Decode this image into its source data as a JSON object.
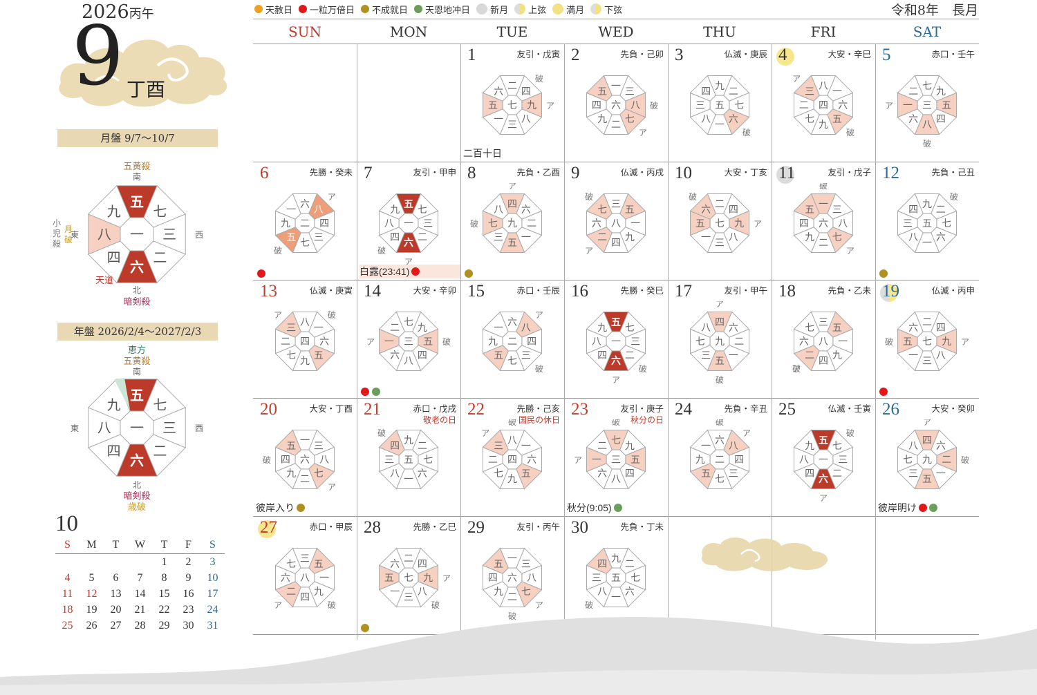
{
  "header": {
    "year": "2026",
    "year_kanshi": "丙午",
    "month": "9",
    "month_kanshi": "丁酉",
    "era": "令和8年　長月"
  },
  "legend": [
    {
      "label": "天赦日",
      "color": "#f0a020",
      "type": "dot"
    },
    {
      "label": "一粒万倍日",
      "color": "#e01818",
      "type": "dot"
    },
    {
      "label": "不成就日",
      "color": "#b09020",
      "type": "dot"
    },
    {
      "label": "天恩地冲日",
      "color": "#6a9e5a",
      "type": "dot"
    },
    {
      "label": "新月",
      "color": "#d8d8d8",
      "type": "moon-new"
    },
    {
      "label": "上弦",
      "color": "#f3e080",
      "type": "moon-half"
    },
    {
      "label": "満月",
      "color": "#f3e080",
      "type": "moon-full"
    },
    {
      "label": "下弦",
      "color": "#f3e080",
      "type": "moon-half"
    }
  ],
  "weekdays": [
    "SUN",
    "MON",
    "TUE",
    "WED",
    "THU",
    "FRI",
    "SAT"
  ],
  "colors": {
    "red": "#c0392b",
    "blue": "#2a6a9a",
    "salmon": "#f6d0c0",
    "accent": "#d8482f",
    "orange": "#ee9e78",
    "dark": "#bb3a2a",
    "ichiryu": "#e01818",
    "fujo": "#b09020",
    "tenon": "#6a9e5a",
    "banner": "#e8d9b4"
  },
  "month_board": {
    "title": "月盤 9/7〜10/7",
    "label_top": "五黄殺",
    "south": "南",
    "north": "北",
    "east": "東",
    "west": "西",
    "label_bottom": "暗剣殺",
    "label_tendo": "天道",
    "label_left_a": "小児殺",
    "label_left_b": "月破",
    "center": "一",
    "cells": [
      "五",
      "七",
      "三",
      "二",
      "六",
      "四",
      "八",
      "九"
    ]
  },
  "year_board": {
    "title": "年盤 2026/2/4〜2027/2/3",
    "label_ehou": "恵方",
    "label_top": "五黄殺",
    "south": "南",
    "north": "北",
    "east": "東",
    "west": "西",
    "label_bottom": "暗剣殺",
    "label_saiha": "歳破",
    "center": "一",
    "cells": [
      "五",
      "七",
      "三",
      "二",
      "六",
      "四",
      "八",
      "九"
    ]
  },
  "days": [
    {
      "d": "1",
      "rk": "友引・戊寅",
      "center": "七",
      "ring": [
        "二",
        "四",
        "九",
        "八",
        "三",
        "一",
        "五",
        "六"
      ],
      "hl": [
        {
          "i": 2,
          "s": "p"
        },
        {
          "i": 6,
          "s": "p"
        }
      ],
      "a": 2,
      "ha": 1,
      "note": "二百十日"
    },
    {
      "d": "2",
      "rk": "先負・己卯",
      "center": "六",
      "ring": [
        "一",
        "三",
        "八",
        "七",
        "二",
        "九",
        "四",
        "五"
      ],
      "hl": [
        {
          "i": 7,
          "s": "p"
        },
        {
          "i": 3,
          "s": "p"
        },
        {
          "i": 2,
          "s": "p"
        }
      ],
      "a": 3,
      "ha": 2
    },
    {
      "d": "3",
      "rk": "仏滅・庚辰",
      "center": "五",
      "ring": [
        "九",
        "二",
        "七",
        "六",
        "一",
        "八",
        "三",
        "四"
      ],
      "hl": [
        {
          "i": 3,
          "s": "p"
        }
      ],
      "a": -1,
      "ha": 3
    },
    {
      "d": "4",
      "rk": "大安・辛巳",
      "center": "四",
      "ring": [
        "八",
        "一",
        "六",
        "五",
        "九",
        "七",
        "二",
        "三"
      ],
      "hl": [
        {
          "i": 7,
          "s": "p"
        },
        {
          "i": 3,
          "s": "p"
        }
      ],
      "a": 7,
      "ha": 3,
      "moon": "full"
    },
    {
      "d": "5",
      "rk": "赤口・壬午",
      "center": "三",
      "ring": [
        "七",
        "九",
        "五",
        "四",
        "八",
        "六",
        "一",
        "二"
      ],
      "hl": [
        {
          "i": 6,
          "s": "p"
        },
        {
          "i": 2,
          "s": "p"
        },
        {
          "i": 4,
          "s": "p"
        }
      ],
      "a": 6,
      "ha": 4
    },
    {
      "d": "6",
      "rk": "先勝・癸未",
      "center": "二",
      "ring": [
        "六",
        "八",
        "四",
        "三",
        "七",
        "五",
        "九",
        "一"
      ],
      "hl": [
        {
          "i": 1,
          "s": "o"
        },
        {
          "i": 5,
          "s": "o"
        }
      ],
      "a": 1,
      "ha": 5,
      "dots": [
        "ichiryu"
      ]
    },
    {
      "d": "7",
      "rk": "友引・甲申",
      "center": "一",
      "ring": [
        "五",
        "七",
        "三",
        "二",
        "六",
        "四",
        "八",
        "九"
      ],
      "hl": [
        {
          "i": 0,
          "s": "r"
        },
        {
          "i": 4,
          "s": "r"
        }
      ],
      "a": 4,
      "ha": 5,
      "note": "白露(23:41)",
      "notedots": [
        "ichiryu"
      ],
      "notebg": true
    },
    {
      "d": "8",
      "rk": "先負・乙酉",
      "center": "九",
      "ring": [
        "四",
        "六",
        "二",
        "一",
        "五",
        "三",
        "七",
        "八"
      ],
      "hl": [
        {
          "i": 0,
          "s": "p"
        },
        {
          "i": 4,
          "s": "p"
        },
        {
          "i": 6,
          "s": "p"
        }
      ],
      "a": 0,
      "ha": 6,
      "dots": [
        "fujo"
      ]
    },
    {
      "d": "9",
      "rk": "仏滅・丙戌",
      "center": "八",
      "ring": [
        "三",
        "五",
        "一",
        "九",
        "四",
        "二",
        "六",
        "七"
      ],
      "hl": [
        {
          "i": 1,
          "s": "p"
        },
        {
          "i": 7,
          "s": "p"
        },
        {
          "i": 5,
          "s": "p"
        }
      ],
      "a": 5,
      "ha": 7
    },
    {
      "d": "10",
      "rk": "大安・丁亥",
      "center": "七",
      "ring": [
        "二",
        "四",
        "九",
        "八",
        "三",
        "一",
        "五",
        "六"
      ],
      "hl": [
        {
          "i": 2,
          "s": "p"
        },
        {
          "i": 6,
          "s": "p"
        },
        {
          "i": 7,
          "s": "p"
        }
      ],
      "a": 2,
      "ha": 7
    },
    {
      "d": "11",
      "rk": "友引・戊子",
      "center": "六",
      "ring": [
        "一",
        "三",
        "八",
        "七",
        "二",
        "九",
        "四",
        "五"
      ],
      "hl": [
        {
          "i": 0,
          "s": "p"
        },
        {
          "i": 7,
          "s": "p"
        },
        {
          "i": 3,
          "s": "p"
        }
      ],
      "a": 3,
      "ha": 0,
      "moon": "new"
    },
    {
      "d": "12",
      "rk": "先負・己丑",
      "center": "五",
      "ring": [
        "九",
        "二",
        "七",
        "六",
        "一",
        "八",
        "三",
        "四"
      ],
      "hl": [],
      "a": -1,
      "ha": 1,
      "dots": [
        "fujo"
      ]
    },
    {
      "d": "13",
      "rk": "仏滅・庚寅",
      "center": "四",
      "ring": [
        "八",
        "一",
        "六",
        "五",
        "九",
        "七",
        "二",
        "三"
      ],
      "hl": [
        {
          "i": 7,
          "s": "p"
        },
        {
          "i": 3,
          "s": "p"
        }
      ],
      "a": 7,
      "ha": 1
    },
    {
      "d": "14",
      "rk": "大安・辛卯",
      "center": "三",
      "ring": [
        "七",
        "九",
        "五",
        "四",
        "八",
        "六",
        "一",
        "二"
      ],
      "hl": [
        {
          "i": 6,
          "s": "p"
        },
        {
          "i": 2,
          "s": "p"
        }
      ],
      "a": 6,
      "ha": 2,
      "dots": [
        "ichiryu",
        "tenon"
      ]
    },
    {
      "d": "15",
      "rk": "赤口・壬辰",
      "center": "二",
      "ring": [
        "六",
        "八",
        "四",
        "三",
        "七",
        "五",
        "九",
        "一"
      ],
      "hl": [
        {
          "i": 1,
          "s": "p"
        },
        {
          "i": 5,
          "s": "p"
        }
      ],
      "a": 1,
      "ha": 3
    },
    {
      "d": "16",
      "rk": "先勝・癸巳",
      "center": "一",
      "ring": [
        "五",
        "七",
        "三",
        "二",
        "六",
        "四",
        "八",
        "九"
      ],
      "hl": [
        {
          "i": 0,
          "s": "r"
        },
        {
          "i": 4,
          "s": "r"
        }
      ],
      "a": 4,
      "ha": 3
    },
    {
      "d": "17",
      "rk": "友引・甲午",
      "center": "九",
      "ring": [
        "四",
        "六",
        "二",
        "一",
        "五",
        "三",
        "七",
        "八"
      ],
      "hl": [
        {
          "i": 0,
          "s": "p"
        },
        {
          "i": 4,
          "s": "p"
        }
      ],
      "a": 0,
      "ha": 4
    },
    {
      "d": "18",
      "rk": "先負・乙未",
      "center": "八",
      "ring": [
        "三",
        "五",
        "一",
        "九",
        "四",
        "二",
        "六",
        "七"
      ],
      "hl": [
        {
          "i": 1,
          "s": "p"
        },
        {
          "i": 5,
          "s": "p"
        }
      ],
      "a": 5,
      "ha": 5
    },
    {
      "d": "19",
      "rk": "仏滅・丙申",
      "center": "七",
      "ring": [
        "二",
        "四",
        "九",
        "八",
        "三",
        "一",
        "五",
        "六"
      ],
      "hl": [
        {
          "i": 2,
          "s": "p"
        },
        {
          "i": 6,
          "s": "p"
        }
      ],
      "a": 2,
      "ha": 6,
      "moon": "half",
      "dots": [
        "ichiryu"
      ]
    },
    {
      "d": "20",
      "rk": "大安・丁酉",
      "center": "六",
      "ring": [
        "一",
        "三",
        "八",
        "七",
        "二",
        "九",
        "四",
        "五"
      ],
      "hl": [
        {
          "i": 7,
          "s": "p"
        },
        {
          "i": 3,
          "s": "p"
        }
      ],
      "a": 3,
      "ha": 6,
      "note": "彼岸入り",
      "notedots": [
        "fujo"
      ]
    },
    {
      "d": "21",
      "rk": "赤口・戊戌",
      "hol": "敬老の日",
      "center": "五",
      "ring": [
        "九",
        "二",
        "七",
        "六",
        "一",
        "八",
        "三",
        "四"
      ],
      "hl": [
        {
          "i": 7,
          "s": "p"
        }
      ],
      "a": -1,
      "ha": 7
    },
    {
      "d": "22",
      "rk": "先勝・己亥",
      "hol": "国民の休日",
      "center": "四",
      "ring": [
        "八",
        "一",
        "六",
        "五",
        "九",
        "七",
        "二",
        "三"
      ],
      "hl": [
        {
          "i": 7,
          "s": "p"
        },
        {
          "i": 3,
          "s": "p"
        }
      ],
      "a": 7,
      "ha": 0
    },
    {
      "d": "23",
      "rk": "友引・庚子",
      "hol": "秋分の日",
      "center": "三",
      "ring": [
        "七",
        "九",
        "五",
        "四",
        "八",
        "六",
        "一",
        "二"
      ],
      "hl": [
        {
          "i": 0,
          "s": "p"
        },
        {
          "i": 6,
          "s": "p"
        },
        {
          "i": 2,
          "s": "p"
        }
      ],
      "a": 6,
      "ha": 0,
      "note": "秋分(9:05)",
      "notedots": [
        "tenon"
      ]
    },
    {
      "d": "24",
      "rk": "先負・辛丑",
      "center": "二",
      "ring": [
        "六",
        "八",
        "四",
        "三",
        "七",
        "五",
        "九",
        "一"
      ],
      "hl": [
        {
          "i": 1,
          "s": "p"
        },
        {
          "i": 5,
          "s": "p"
        }
      ],
      "a": 1,
      "ha": 0
    },
    {
      "d": "25",
      "rk": "仏滅・壬寅",
      "center": "一",
      "ring": [
        "五",
        "七",
        "三",
        "二",
        "六",
        "四",
        "八",
        "九"
      ],
      "hl": [
        {
          "i": 0,
          "s": "r"
        },
        {
          "i": 4,
          "s": "r"
        }
      ],
      "a": 4,
      "ha": 1
    },
    {
      "d": "26",
      "rk": "大安・癸卯",
      "center": "九",
      "ring": [
        "四",
        "六",
        "二",
        "一",
        "五",
        "三",
        "七",
        "八"
      ],
      "hl": [
        {
          "i": 0,
          "s": "p"
        },
        {
          "i": 2,
          "s": "p"
        },
        {
          "i": 4,
          "s": "p"
        }
      ],
      "a": 0,
      "ha": 2,
      "note": "彼岸明け",
      "notedots": [
        "ichiryu",
        "tenon"
      ]
    },
    {
      "d": "27",
      "rk": "赤口・甲辰",
      "center": "八",
      "ring": [
        "三",
        "五",
        "一",
        "九",
        "四",
        "二",
        "六",
        "七"
      ],
      "hl": [
        {
          "i": 1,
          "s": "p"
        },
        {
          "i": 5,
          "s": "p"
        }
      ],
      "a": 5,
      "ha": 3,
      "moon": "full"
    },
    {
      "d": "28",
      "rk": "先勝・乙巳",
      "center": "七",
      "ring": [
        "二",
        "四",
        "九",
        "八",
        "三",
        "一",
        "五",
        "六"
      ],
      "hl": [
        {
          "i": 2,
          "s": "p"
        },
        {
          "i": 6,
          "s": "p"
        }
      ],
      "a": 2,
      "ha": 3,
      "dots": [
        "fujo"
      ]
    },
    {
      "d": "29",
      "rk": "友引・丙午",
      "center": "六",
      "ring": [
        "一",
        "三",
        "八",
        "七",
        "二",
        "九",
        "四",
        "五"
      ],
      "hl": [
        {
          "i": 7,
          "s": "p"
        },
        {
          "i": 3,
          "s": "p"
        }
      ],
      "a": 3,
      "ha": 4
    },
    {
      "d": "30",
      "rk": "先負・丁未",
      "center": "五",
      "ring": [
        "九",
        "二",
        "七",
        "六",
        "一",
        "八",
        "三",
        "四"
      ],
      "hl": [
        {
          "i": 7,
          "s": "p"
        }
      ],
      "a": -1,
      "ha": 5
    }
  ],
  "grid_labels": {
    "a": "ア",
    "ha": "破"
  },
  "mini_calendar": {
    "month": "10",
    "headers": [
      "S",
      "M",
      "T",
      "W",
      "T",
      "F",
      "S"
    ],
    "weeks": [
      [
        "",
        "",
        "",
        "",
        "1",
        "2",
        "3"
      ],
      [
        "4",
        "5",
        "6",
        "7",
        "8",
        "9",
        "10"
      ],
      [
        "11",
        "12",
        "13",
        "14",
        "15",
        "16",
        "17"
      ],
      [
        "18",
        "19",
        "20",
        "21",
        "22",
        "23",
        "24"
      ],
      [
        "25",
        "26",
        "27",
        "28",
        "29",
        "30",
        "31"
      ]
    ],
    "red_dates": [
      "12"
    ]
  }
}
